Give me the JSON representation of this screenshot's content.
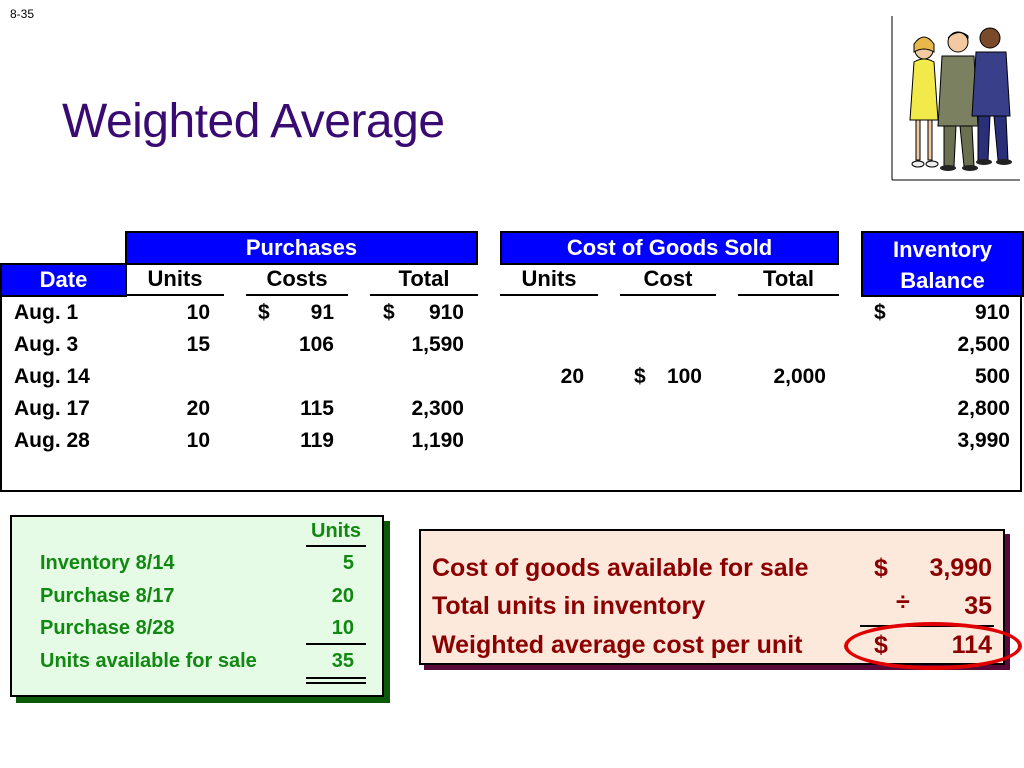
{
  "slide_number": "8-35",
  "title": "Weighted Average",
  "table": {
    "group_headers": {
      "purchases": "Purchases",
      "cogs": "Cost of Goods Sold",
      "inventory_line1": "Inventory",
      "inventory_line2": "Balance"
    },
    "columns": [
      "Date",
      "Units",
      "Costs",
      "Total",
      "Units",
      "Cost",
      "Total"
    ],
    "rows": [
      {
        "date": "Aug. 1",
        "p_units": "10",
        "p_cost_sym": "$",
        "p_cost": "91",
        "p_total_sym": "$",
        "p_total": "910",
        "c_units": "",
        "c_cost_sym": "",
        "c_cost": "",
        "c_total": "",
        "bal_sym": "$",
        "balance": "910"
      },
      {
        "date": "Aug. 3",
        "p_units": "15",
        "p_cost_sym": "",
        "p_cost": "106",
        "p_total_sym": "",
        "p_total": "1,590",
        "c_units": "",
        "c_cost_sym": "",
        "c_cost": "",
        "c_total": "",
        "bal_sym": "",
        "balance": "2,500"
      },
      {
        "date": "Aug. 14",
        "p_units": "",
        "p_cost_sym": "",
        "p_cost": "",
        "p_total_sym": "",
        "p_total": "",
        "c_units": "20",
        "c_cost_sym": "$",
        "c_cost": "100",
        "c_total": "2,000",
        "bal_sym": "",
        "balance": "500"
      },
      {
        "date": "Aug. 17",
        "p_units": "20",
        "p_cost_sym": "",
        "p_cost": "115",
        "p_total_sym": "",
        "p_total": "2,300",
        "c_units": "",
        "c_cost_sym": "",
        "c_cost": "",
        "c_total": "",
        "bal_sym": "",
        "balance": "2,800"
      },
      {
        "date": "Aug. 28",
        "p_units": "10",
        "p_cost_sym": "",
        "p_cost": "119",
        "p_total_sym": "",
        "p_total": "1,190",
        "c_units": "",
        "c_cost_sym": "",
        "c_cost": "",
        "c_total": "",
        "bal_sym": "",
        "balance": "3,990"
      }
    ]
  },
  "units_box": {
    "header": "Units",
    "items": [
      {
        "label": "Inventory 8/14",
        "value": "5"
      },
      {
        "label": "Purchase 8/17",
        "value": "20"
      },
      {
        "label": "Purchase 8/28",
        "value": "10"
      },
      {
        "label": "Units available for sale",
        "value": "35"
      }
    ]
  },
  "cost_box": {
    "lines": [
      {
        "label": "Cost of goods available for sale",
        "symbol": "$",
        "value": "3,990"
      },
      {
        "label": "Total units in inventory",
        "symbol": "÷",
        "value": "35"
      },
      {
        "label": "Weighted average cost per unit",
        "symbol": "$",
        "value": "114"
      }
    ]
  },
  "colors": {
    "title": "#3a0a73",
    "header_blue": "#0000ff",
    "units_text": "#118811",
    "cost_text": "#8b0000",
    "highlight_oval": "#e00000"
  },
  "icons": {
    "clipart": "business-people-clipart"
  }
}
